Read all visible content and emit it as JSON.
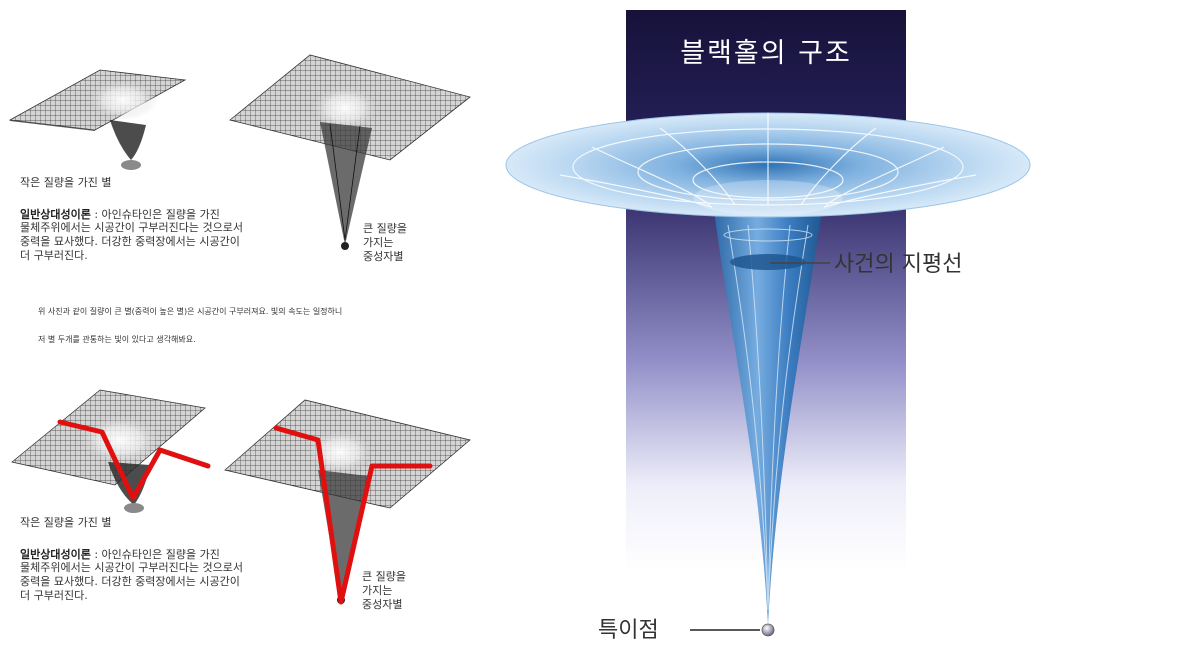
{
  "left_panel": {
    "top_figure": {
      "small_mass_caption": "작은 질량을 가진 별",
      "theory_title": "일반상대성이론",
      "theory_lines": [
        " : 아인슈타인은 질량을 가진",
        "물체주위에서는 시공간이 구부러진다는 것으로서",
        "중력을 묘사했다. 더강한 중력장에서는 시공간이",
        "더 구부러진다."
      ],
      "large_mass_caption_lines": [
        "큰 질량을",
        "가지는",
        "중성자별"
      ]
    },
    "notes": [
      "위 사진과 같이 질량이 큰 별(중력이 높은 별)은 시공간이 구부러져요. 빛의 속도는 일정하니",
      "저 별 두개를 관통하는 빛이 있다고 생각해봐요."
    ],
    "bottom_figure": {
      "small_mass_caption": "작은 질량을 가진 별",
      "theory_title": "일반상대성이론",
      "theory_lines": [
        " : 아인슈타인은 질량을 가진",
        "물체주위에서는 시공간이 구부러진다는 것으로서",
        "중력을 묘사했다. 더강한 중력장에서는 시공간이",
        "더 구부러진다."
      ],
      "large_mass_caption_lines": [
        "큰 질량을",
        "가지는",
        "중성자별"
      ],
      "light_path_color": "#e01010"
    }
  },
  "right_panel": {
    "title": "블랙홀의 구조",
    "event_horizon_label": "사건의 지평선",
    "singularity_label": "특이점",
    "colors": {
      "background_top": "#16123a",
      "background_bottom": "#ffffff",
      "funnel_light": "#cfe4f6",
      "funnel_dark": "#2f73b5"
    }
  }
}
